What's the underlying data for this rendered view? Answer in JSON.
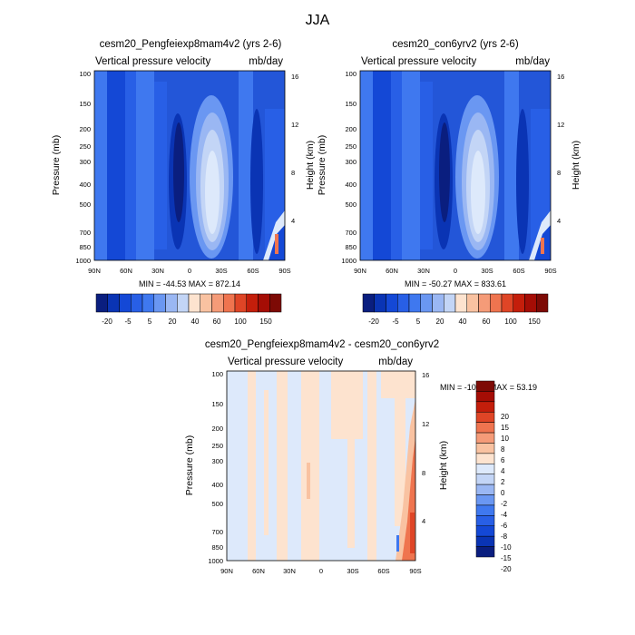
{
  "figure": {
    "title": "JJA",
    "colors": {
      "neg": [
        "#0a1e7f",
        "#0a34b4",
        "#1448d6",
        "#285fe6",
        "#3f78ef",
        "#6a97f2",
        "#9ab7f3",
        "#c3d5f6",
        "#dde9fb"
      ],
      "pos": [
        "#fde3cf",
        "#f9c2a1",
        "#f59b78",
        "#ef744f",
        "#df4526",
        "#c41e0b",
        "#a50d05",
        "#7d0a05"
      ]
    }
  },
  "chart_data": [
    {
      "type": "heatmap",
      "title": "cesm20_Pengfeiexp8mam4v2 (yrs 2-6)",
      "variable": "Vertical pressure velocity",
      "units": "mb/day",
      "xlabel": "",
      "ylabel": "Pressure (mb)",
      "y2label": "Height (km)",
      "x_ticks": [
        "90N",
        "60N",
        "30N",
        "0",
        "30S",
        "60S",
        "90S"
      ],
      "y_ticks": [
        "100",
        "150",
        "200",
        "250",
        "300",
        "400",
        "500",
        "700",
        "850",
        "1000"
      ],
      "y2_ticks": [
        "16",
        "12",
        "8",
        "4"
      ],
      "min_max": "MIN = -44.53   MAX = 872.14",
      "colorbar": {
        "labels": [
          "-20",
          "-5",
          "5",
          "20",
          "40",
          "60",
          "100",
          "150"
        ]
      }
    },
    {
      "type": "heatmap",
      "title": "cesm20_con6yrv2 (yrs 2-6)",
      "variable": "Vertical pressure velocity",
      "units": "mb/day",
      "xlabel": "",
      "ylabel": "Pressure (mb)",
      "y2label": "Height (km)",
      "x_ticks": [
        "90N",
        "60N",
        "30N",
        "0",
        "30S",
        "60S",
        "90S"
      ],
      "y_ticks": [
        "100",
        "150",
        "200",
        "250",
        "300",
        "400",
        "500",
        "700",
        "850",
        "1000"
      ],
      "y2_ticks": [
        "16",
        "12",
        "8",
        "4"
      ],
      "min_max": "MIN = -50.27   MAX = 833.61",
      "colorbar": {
        "labels": [
          "-20",
          "-5",
          "5",
          "20",
          "40",
          "60",
          "100",
          "150"
        ]
      }
    },
    {
      "type": "heatmap",
      "title": "cesm20_Pengfeiexp8mam4v2 - cesm20_con6yrv2",
      "variable": "Vertical pressure velocity",
      "units": "mb/day",
      "xlabel": "",
      "ylabel": "Pressure (mb)",
      "y2label": "Height (km)",
      "x_ticks": [
        "90N",
        "60N",
        "30N",
        "0",
        "30S",
        "60S",
        "90S"
      ],
      "y_ticks": [
        "100",
        "150",
        "200",
        "250",
        "300",
        "400",
        "500",
        "700",
        "850",
        "1000"
      ],
      "y2_ticks": [
        "16",
        "12",
        "8",
        "4"
      ],
      "min_max": "MIN = -10.19   MAX =  53.19",
      "colorbar": {
        "labels": [
          "20",
          "15",
          "10",
          "8",
          "6",
          "4",
          "2",
          "0",
          "-2",
          "-4",
          "-6",
          "-8",
          "-10",
          "-15",
          "-20"
        ]
      }
    }
  ]
}
